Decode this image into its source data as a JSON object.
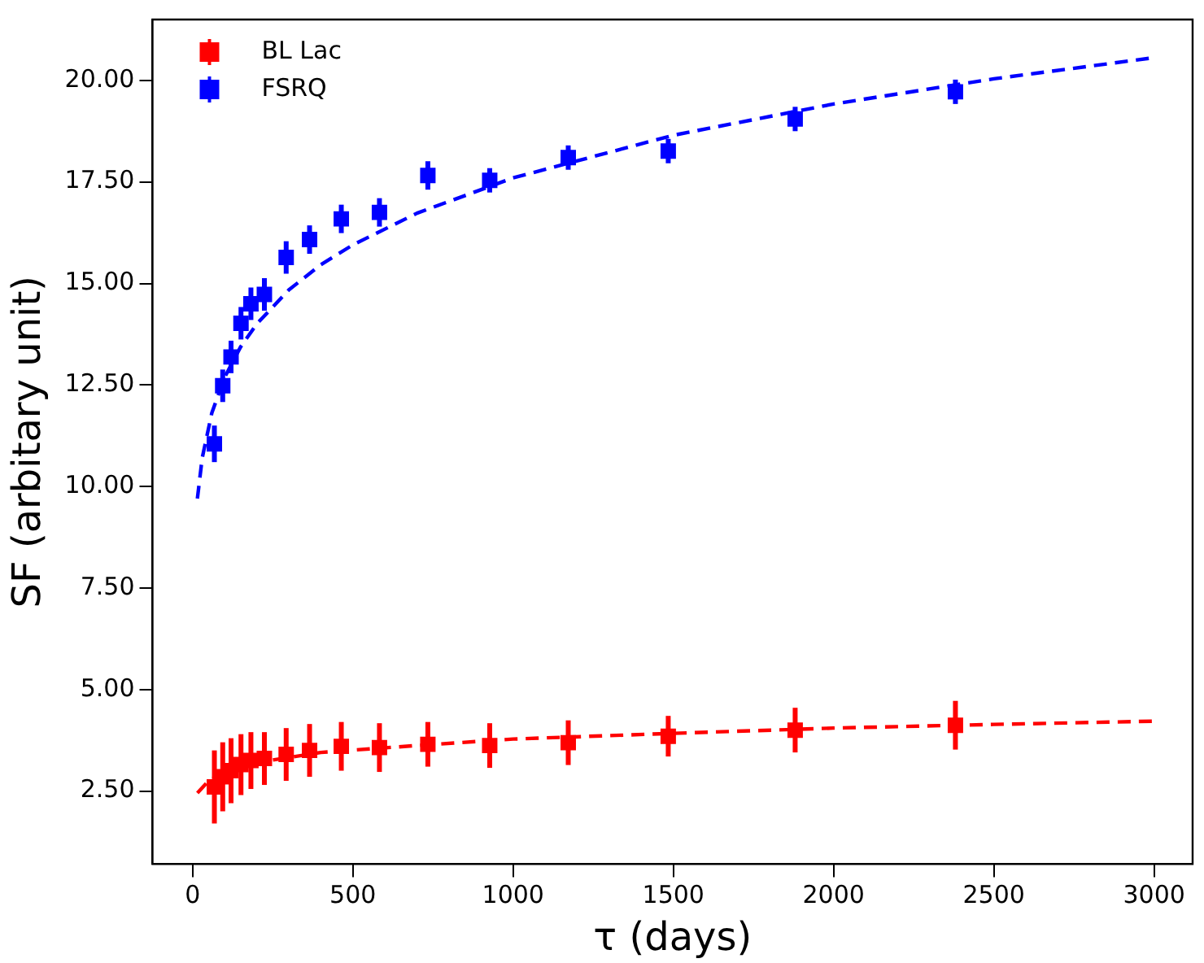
{
  "chart_data": {
    "type": "scatter",
    "xlabel": "τ (days)",
    "ylabel": "SF (arbitary unit)",
    "xlim": [
      -125,
      3120
    ],
    "ylim": [
      0.7,
      21.5
    ],
    "xticks": [
      0,
      500,
      1000,
      1500,
      2000,
      2500,
      3000
    ],
    "yticks": [
      {
        "value": 2.5,
        "label": "2.50"
      },
      {
        "value": 5,
        "label": "5.00"
      },
      {
        "value": 7.5,
        "label": "7.50"
      },
      {
        "value": 10,
        "label": "10.00"
      },
      {
        "value": 12.5,
        "label": "12.50"
      },
      {
        "value": 15,
        "label": "15.00"
      },
      {
        "value": 17.5,
        "label": "17.50"
      },
      {
        "value": 20,
        "label": "20.00"
      }
    ],
    "legend": "top left",
    "grid": false,
    "series": [
      {
        "name": "BL Lac",
        "color": "#ff0000",
        "marker": "square",
        "x": [
          68,
          94,
          120,
          151,
          182,
          224,
          292,
          365,
          464,
          583,
          734,
          927,
          1172,
          1484,
          1880,
          2380
        ],
        "values": [
          2.6,
          2.85,
          3.0,
          3.15,
          3.25,
          3.3,
          3.4,
          3.5,
          3.6,
          3.57,
          3.65,
          3.62,
          3.69,
          3.85,
          4.0,
          4.12
        ],
        "errors": [
          0.9,
          0.85,
          0.8,
          0.75,
          0.7,
          0.65,
          0.65,
          0.65,
          0.6,
          0.6,
          0.55,
          0.55,
          0.55,
          0.5,
          0.55,
          0.6
        ]
      },
      {
        "name": "FSRQ",
        "color": "#0000ff",
        "marker": "square",
        "x": [
          68,
          94,
          120,
          151,
          182,
          224,
          292,
          365,
          464,
          583,
          734,
          927,
          1172,
          1484,
          1880,
          2380
        ],
        "values": [
          11.05,
          12.48,
          13.19,
          14.02,
          14.5,
          14.73,
          15.64,
          16.08,
          16.59,
          16.75,
          17.66,
          17.54,
          18.1,
          18.26,
          19.05,
          19.72
        ],
        "errors": [
          0.45,
          0.4,
          0.4,
          0.4,
          0.4,
          0.4,
          0.4,
          0.35,
          0.35,
          0.35,
          0.35,
          0.3,
          0.3,
          0.3,
          0.3,
          0.3
        ]
      },
      {
        "type": "line",
        "line_style": "dashed",
        "marker": "none",
        "color": "#ff0000",
        "x": [
          15,
          50,
          100,
          200,
          400,
          700,
          1000,
          1500,
          2000,
          2500,
          3000
        ],
        "values": [
          2.45,
          2.75,
          2.95,
          3.2,
          3.45,
          3.62,
          3.78,
          3.92,
          4.05,
          4.14,
          4.22
        ]
      },
      {
        "type": "line",
        "line_style": "dashed",
        "marker": "none",
        "color": "#0000ff",
        "x": [
          15,
          30,
          60,
          100,
          150,
          200,
          300,
          400,
          500,
          700,
          1000,
          1500,
          2000,
          2500,
          3000
        ],
        "values": [
          9.7,
          10.7,
          11.81,
          12.69,
          13.44,
          14.0,
          14.84,
          15.46,
          15.95,
          16.73,
          17.6,
          18.65,
          19.42,
          20.04,
          20.56
        ]
      }
    ]
  }
}
